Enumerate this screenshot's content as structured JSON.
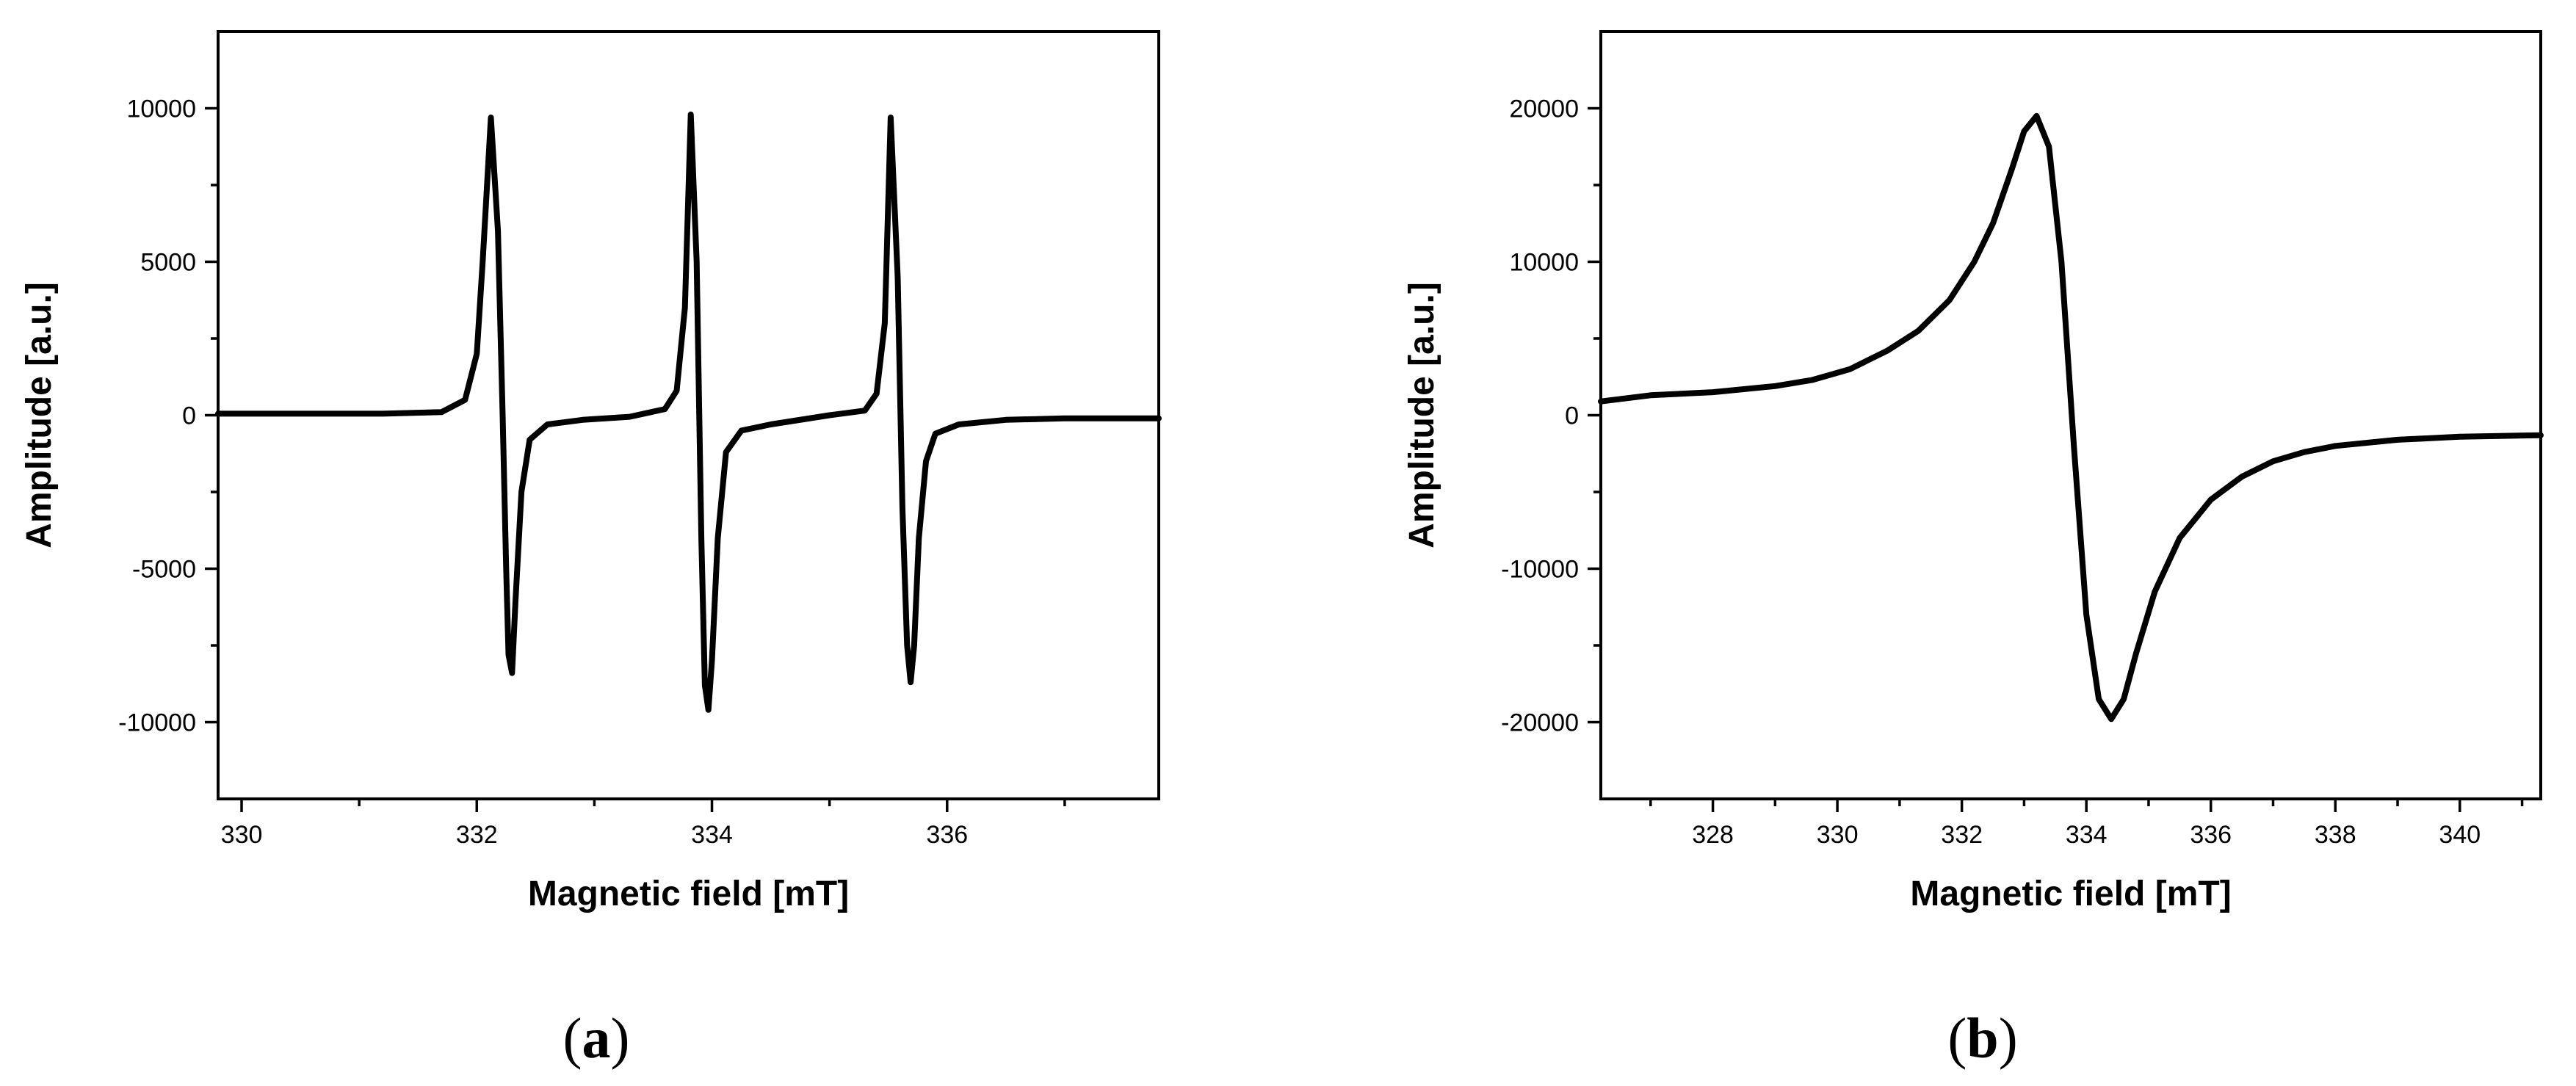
{
  "chart_data": [
    {
      "panel_label": "a",
      "type": "line",
      "xlabel": "Magnetic field [mT]",
      "ylabel": "Amplitude [a.u.]",
      "xlim": [
        329.8,
        337.8
      ],
      "ylim": [
        -12500,
        12500
      ],
      "x_ticks": [
        330,
        332,
        334,
        336
      ],
      "y_ticks": [
        10000,
        5000,
        0,
        -5000,
        -10000
      ],
      "x_tick_labels": [
        "330",
        "332",
        "334",
        "336"
      ],
      "y_tick_labels": [
        "10000",
        "5000",
        "0",
        "-5000",
        "-10000"
      ],
      "grid": false,
      "series": [
        {
          "x": [
            329.8,
            330.5,
            331.2,
            331.7,
            331.9,
            332.0,
            332.05,
            332.12,
            332.18,
            332.22,
            332.25,
            332.27,
            332.3,
            332.33,
            332.38,
            332.45,
            332.6,
            332.9,
            333.3,
            333.6,
            333.7,
            333.77,
            333.82,
            333.87,
            333.91,
            333.94,
            333.97,
            334.0,
            334.05,
            334.12,
            334.25,
            334.5,
            335.0,
            335.3,
            335.4,
            335.47,
            335.52,
            335.58,
            335.62,
            335.66,
            335.69,
            335.72,
            335.76,
            335.82,
            335.9,
            336.1,
            336.5,
            337.0,
            337.8
          ],
          "y": [
            50,
            50,
            50,
            100,
            500,
            2000,
            5000,
            9700,
            6000,
            0,
            -5000,
            -7800,
            -8400,
            -6000,
            -2500,
            -800,
            -300,
            -150,
            -50,
            200,
            800,
            3500,
            9800,
            5000,
            -4000,
            -8800,
            -9600,
            -8000,
            -4000,
            -1200,
            -500,
            -300,
            0,
            150,
            700,
            3000,
            9700,
            4500,
            -3000,
            -7500,
            -8700,
            -7500,
            -4000,
            -1500,
            -600,
            -300,
            -150,
            -100,
            -100
          ]
        }
      ]
    },
    {
      "panel_label": "b",
      "type": "line",
      "xlabel": "Magnetic field [mT]",
      "ylabel": "Amplitude [a.u.]",
      "xlim": [
        326.2,
        341.3
      ],
      "ylim": [
        -25000,
        25000
      ],
      "x_ticks": [
        328,
        330,
        332,
        334,
        336,
        338,
        340
      ],
      "y_ticks": [
        20000,
        10000,
        0,
        -10000,
        -20000
      ],
      "x_tick_labels": [
        "328",
        "330",
        "332",
        "334",
        "336",
        "338",
        "340"
      ],
      "y_tick_labels": [
        "20000",
        "10000",
        "0",
        "-10000",
        "-20000"
      ],
      "grid": false,
      "series": [
        {
          "x": [
            326.2,
            327.0,
            328.0,
            329.0,
            329.6,
            330.2,
            330.8,
            331.3,
            331.8,
            332.2,
            332.5,
            332.8,
            333.0,
            333.2,
            333.4,
            333.6,
            333.8,
            334.0,
            334.2,
            334.4,
            334.6,
            334.8,
            335.1,
            335.5,
            336.0,
            336.5,
            337.0,
            337.5,
            338.0,
            339.0,
            340.0,
            341.3
          ],
          "y": [
            900,
            1300,
            1500,
            1900,
            2300,
            3000,
            4200,
            5500,
            7500,
            10000,
            12500,
            16000,
            18500,
            19500,
            17500,
            10000,
            -2000,
            -13000,
            -18500,
            -19800,
            -18500,
            -15500,
            -11500,
            -8000,
            -5500,
            -4000,
            -3000,
            -2400,
            -2000,
            -1600,
            -1400,
            -1300
          ]
        }
      ]
    }
  ]
}
